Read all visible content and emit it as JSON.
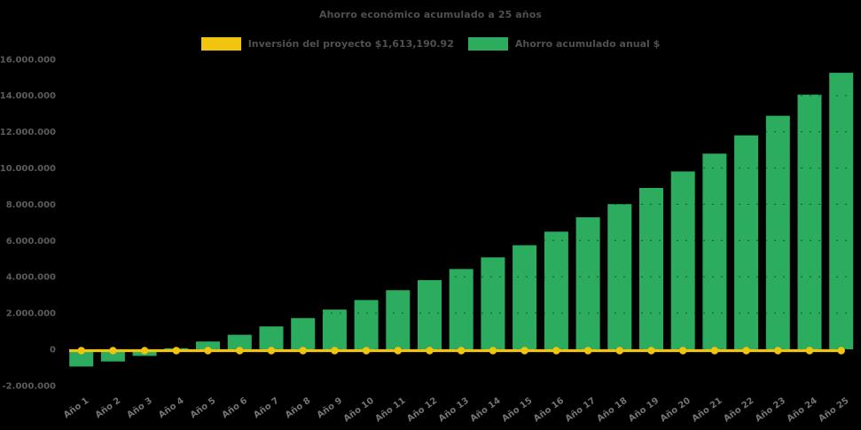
{
  "chart_data": {
    "type": "bar",
    "title": "Ahorro económico acumulado a 25 años",
    "xlabel": "",
    "ylabel": "",
    "categories": [
      "Año 1",
      "Año 2",
      "Año 3",
      "Año 4",
      "Año 5",
      "Año 6",
      "Año 7",
      "Año 8",
      "Año 9",
      "Año 10",
      "Año 11",
      "Año 12",
      "Año 13",
      "Año 14",
      "Año 15",
      "Año 16",
      "Año 17",
      "Año 18",
      "Año 19",
      "Año 20",
      "Año 21",
      "Año 22",
      "Año 23",
      "Año 24",
      "Año 25"
    ],
    "series": [
      {
        "name": "Inversión del proyecto $1,613,190.92",
        "type": "line",
        "color": "#f1c40f",
        "marker": "circle",
        "values": [
          0,
          0,
          0,
          0,
          0,
          0,
          0,
          0,
          0,
          0,
          0,
          0,
          0,
          0,
          0,
          0,
          0,
          0,
          0,
          0,
          0,
          0,
          0,
          0,
          0
        ]
      },
      {
        "name": "Ahorro acumulado anual $",
        "type": "bar",
        "color": "#2bac5e",
        "values": [
          -950000,
          -670000,
          -360000,
          60000,
          430000,
          800000,
          1260000,
          1720000,
          2190000,
          2720000,
          3260000,
          3820000,
          4430000,
          5070000,
          5740000,
          6490000,
          7280000,
          8010000,
          8900000,
          9810000,
          10790000,
          11800000,
          12880000,
          14050000,
          15250000
        ]
      }
    ],
    "ylim": [
      -2000000,
      16000000
    ],
    "ytick_step": 2000000,
    "ytick_labels": [
      "-2.000.000",
      "0",
      "2.000.000",
      "4.000.000",
      "6.000.000",
      "8.000.000",
      "10.000.000",
      "12.000.000",
      "14.000.000",
      "16.000.000"
    ],
    "grid": "off-visible-only-as-dark-dashes-over-bars",
    "legend_position": "top-center",
    "background_color": "#000000",
    "text_color": "#505050"
  }
}
